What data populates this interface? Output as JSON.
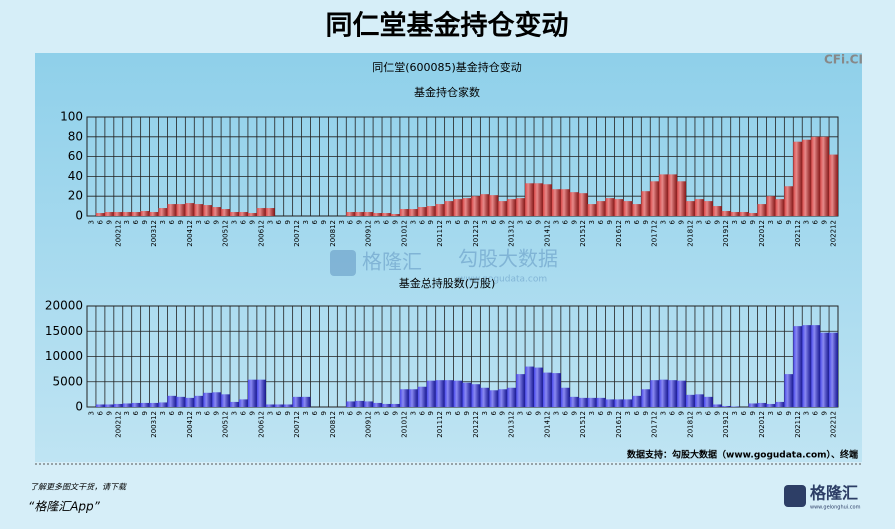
{
  "header": {
    "title": "同仁堂基金持仓变动",
    "subtitle": "同仁堂(600085)基金持仓变动",
    "corner_text": "CFi.CI"
  },
  "chart_data": [
    {
      "type": "bar",
      "title": "基金持仓家数",
      "color": "#d42a2a",
      "grid": true,
      "ylim": [
        0,
        100
      ],
      "yticks": [
        0,
        20,
        40,
        60,
        80,
        100
      ],
      "categories": [
        "3",
        "6",
        "9",
        "200212",
        "3",
        "6",
        "9",
        "200312",
        "3",
        "6",
        "9",
        "200412",
        "3",
        "6",
        "9",
        "200512",
        "3",
        "6",
        "9",
        "200612",
        "3",
        "6",
        "9",
        "200712",
        "3",
        "6",
        "9",
        "200812",
        "3",
        "6",
        "9",
        "200912",
        "3",
        "6",
        "9",
        "201012",
        "3",
        "6",
        "9",
        "201112",
        "3",
        "6",
        "9",
        "201212",
        "3",
        "6",
        "9",
        "201312",
        "3",
        "6",
        "9",
        "201412",
        "3",
        "6",
        "9",
        "201512",
        "3",
        "6",
        "9",
        "201612",
        "3",
        "6",
        "9",
        "201712",
        "3",
        "6",
        "9",
        "201812",
        "3",
        "6",
        "9",
        "201912",
        "3",
        "6",
        "9",
        "202012",
        "3",
        "6",
        "9",
        "202112",
        "3",
        "6",
        "9",
        "202212"
      ],
      "values": [
        0,
        3,
        4,
        4,
        4,
        4,
        5,
        4,
        8,
        12,
        12,
        13,
        12,
        11,
        9,
        7,
        4,
        4,
        3,
        8,
        8,
        0,
        0,
        0,
        0,
        0,
        0,
        0,
        0,
        4,
        4,
        4,
        3,
        3,
        2,
        7,
        7,
        9,
        10,
        12,
        15,
        17,
        18,
        20,
        22,
        21,
        15,
        17,
        18,
        33,
        33,
        32,
        27,
        27,
        24,
        23,
        12,
        15,
        18,
        17,
        15,
        12,
        25,
        35,
        42,
        42,
        35,
        15,
        17,
        15,
        10,
        5,
        4,
        4,
        3,
        12,
        20,
        17,
        30,
        75,
        77,
        80,
        80,
        62
      ]
    },
    {
      "type": "bar",
      "title": "基金总持股数(万股)",
      "color": "#2a2ae8",
      "grid": true,
      "ylim": [
        0,
        20000
      ],
      "yticks": [
        0,
        5000,
        10000,
        15000,
        20000
      ],
      "categories": [
        "3",
        "6",
        "9",
        "200212",
        "3",
        "6",
        "9",
        "200312",
        "3",
        "6",
        "9",
        "200412",
        "3",
        "6",
        "9",
        "200512",
        "3",
        "6",
        "9",
        "200612",
        "3",
        "6",
        "9",
        "200712",
        "3",
        "6",
        "9",
        "200812",
        "3",
        "6",
        "9",
        "200912",
        "3",
        "6",
        "9",
        "201012",
        "3",
        "6",
        "9",
        "201112",
        "3",
        "6",
        "9",
        "201212",
        "3",
        "6",
        "9",
        "201312",
        "3",
        "6",
        "9",
        "201412",
        "3",
        "6",
        "9",
        "201512",
        "3",
        "6",
        "9",
        "201612",
        "3",
        "6",
        "9",
        "201712",
        "3",
        "6",
        "9",
        "201812",
        "3",
        "6",
        "9",
        "201912",
        "3",
        "6",
        "9",
        "202012",
        "3",
        "6",
        "9",
        "202112",
        "3",
        "6",
        "9",
        "202212"
      ],
      "values": [
        0,
        500,
        500,
        600,
        700,
        800,
        800,
        800,
        900,
        2200,
        2000,
        1800,
        2200,
        2800,
        2900,
        2500,
        1000,
        1500,
        5400,
        5400,
        500,
        500,
        500,
        2000,
        2000,
        0,
        0,
        0,
        0,
        1100,
        1200,
        1100,
        800,
        600,
        600,
        3500,
        3500,
        4000,
        5200,
        5300,
        5300,
        5200,
        4800,
        4500,
        3800,
        3300,
        3500,
        3800,
        6500,
        8000,
        7800,
        6800,
        6700,
        3800,
        2000,
        1800,
        1800,
        1800,
        1500,
        1500,
        1500,
        2200,
        3500,
        5300,
        5400,
        5300,
        5200,
        2400,
        2500,
        2000,
        500,
        200,
        100,
        0,
        700,
        800,
        600,
        1000,
        6500,
        16000,
        16200,
        16200,
        14700,
        14700
      ]
    }
  ],
  "source": "数据支持：勾股大数据（www.gogudata.com）、终端",
  "watermark": {
    "brand": "格隆汇",
    "name": "勾股大数据",
    "url": "www.gogudata.com"
  },
  "footer": {
    "note": "了解更多图文干货，请下载",
    "app": "“格隆汇App”",
    "logo": "格隆汇",
    "logo_url": "www.gelonghui.com"
  }
}
